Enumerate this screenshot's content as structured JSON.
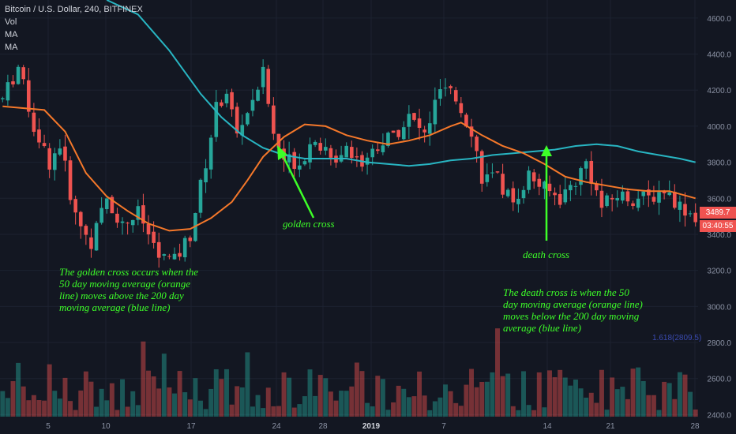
{
  "header": {
    "symbol": "Bitcoin / U.S. Dollar, 240, BITFINEX",
    "indicators": [
      "Vol",
      "MA",
      "MA"
    ]
  },
  "colors": {
    "background": "#131722",
    "up_candle": "#26a69a",
    "down_candle": "#ef5350",
    "ma50": "#f5782a",
    "ma200": "#28b5c2",
    "annotation": "#3dff28",
    "grid": "#1c2230",
    "axis_text": "#8c93a5",
    "price_tag_bg": "#2dbfae",
    "fib_text": "#3a4ab0"
  },
  "annotations": {
    "golden_label": "golden cross",
    "death_label": "death cross",
    "golden_note": [
      "The golden cross occurs when the",
      "50 day moving average (orange",
      "line) moves above the 200 day",
      "moving average (blue line)"
    ],
    "death_note": [
      "The death cross is when the 50",
      "day moving average (orange line)",
      "moves below the 200 day moving",
      "average (blue line)"
    ]
  },
  "price_tags": {
    "last_price": "3489.7",
    "countdown": "03:40:55",
    "fib_level": "1.618(2809.5)"
  },
  "chart_data": {
    "type": "candlestick",
    "title": "Bitcoin / U.S. Dollar, 240, BITFINEX",
    "y_axis": {
      "ticks": [
        2400,
        2600,
        2800,
        3000,
        3200,
        3400,
        3600,
        3800,
        4000,
        4200,
        4400,
        4600
      ],
      "tick_labels": [
        "2400.0",
        "2600.0",
        "2800.0",
        "3000.0",
        "3200.0",
        "3400.0",
        "3600.0",
        "3800.0",
        "4000.0",
        "4200.0",
        "4400.0",
        "4600.0"
      ],
      "range": [
        2380,
        4700
      ]
    },
    "x_axis": {
      "tick_labels": [
        "5",
        "10",
        "17",
        "24",
        "28",
        "2019",
        "7",
        "14",
        "21",
        "28"
      ],
      "bold_label": "2019"
    },
    "price_path": [
      [
        0,
        4150
      ],
      [
        3,
        4330
      ],
      [
        6,
        4000
      ],
      [
        9,
        3800
      ],
      [
        11,
        3900
      ],
      [
        14,
        3500
      ],
      [
        17,
        3350
      ],
      [
        20,
        3600
      ],
      [
        23,
        3450
      ],
      [
        26,
        3520
      ],
      [
        28,
        3400
      ],
      [
        30,
        3280
      ],
      [
        33,
        3250
      ],
      [
        36,
        3400
      ],
      [
        39,
        3800
      ],
      [
        41,
        4100
      ],
      [
        43,
        4200
      ],
      [
        45,
        3950
      ],
      [
        48,
        4150
      ],
      [
        50,
        4300
      ],
      [
        52,
        3950
      ],
      [
        54,
        3820
      ],
      [
        57,
        3800
      ],
      [
        60,
        3950
      ],
      [
        63,
        3800
      ],
      [
        66,
        3900
      ],
      [
        69,
        3800
      ],
      [
        72,
        3900
      ],
      [
        75,
        3950
      ],
      [
        78,
        4050
      ],
      [
        81,
        3950
      ],
      [
        84,
        4200
      ],
      [
        87,
        4150
      ],
      [
        90,
        3980
      ],
      [
        92,
        3720
      ],
      [
        95,
        3700
      ],
      [
        98,
        3580
      ],
      [
        101,
        3730
      ],
      [
        104,
        3650
      ],
      [
        107,
        3600
      ],
      [
        110,
        3700
      ],
      [
        112,
        3800
      ],
      [
        115,
        3550
      ],
      [
        118,
        3620
      ],
      [
        121,
        3600
      ],
      [
        124,
        3600
      ],
      [
        127,
        3650
      ],
      [
        130,
        3560
      ],
      [
        133,
        3500
      ]
    ],
    "ma50": [
      [
        0,
        4110
      ],
      [
        8,
        4090
      ],
      [
        12,
        3970
      ],
      [
        16,
        3740
      ],
      [
        20,
        3610
      ],
      [
        24,
        3530
      ],
      [
        28,
        3460
      ],
      [
        32,
        3420
      ],
      [
        36,
        3430
      ],
      [
        40,
        3490
      ],
      [
        44,
        3580
      ],
      [
        47,
        3700
      ],
      [
        50,
        3830
      ],
      [
        54,
        3940
      ],
      [
        58,
        4010
      ],
      [
        62,
        4000
      ],
      [
        66,
        3950
      ],
      [
        70,
        3920
      ],
      [
        74,
        3900
      ],
      [
        78,
        3920
      ],
      [
        82,
        3950
      ],
      [
        86,
        4000
      ],
      [
        88,
        4020
      ],
      [
        92,
        3950
      ],
      [
        96,
        3890
      ],
      [
        100,
        3850
      ],
      [
        104,
        3790
      ],
      [
        108,
        3720
      ],
      [
        112,
        3690
      ],
      [
        116,
        3670
      ],
      [
        120,
        3650
      ],
      [
        124,
        3640
      ],
      [
        128,
        3640
      ],
      [
        133,
        3600
      ]
    ],
    "ma200": [
      [
        20,
        4700
      ],
      [
        26,
        4620
      ],
      [
        32,
        4420
      ],
      [
        38,
        4180
      ],
      [
        42,
        4050
      ],
      [
        46,
        3950
      ],
      [
        50,
        3880
      ],
      [
        54,
        3840
      ],
      [
        58,
        3820
      ],
      [
        62,
        3820
      ],
      [
        66,
        3820
      ],
      [
        70,
        3800
      ],
      [
        74,
        3790
      ],
      [
        78,
        3780
      ],
      [
        82,
        3790
      ],
      [
        86,
        3810
      ],
      [
        90,
        3820
      ],
      [
        94,
        3840
      ],
      [
        98,
        3850
      ],
      [
        102,
        3860
      ],
      [
        106,
        3870
      ],
      [
        110,
        3890
      ],
      [
        114,
        3900
      ],
      [
        118,
        3890
      ],
      [
        122,
        3860
      ],
      [
        126,
        3840
      ],
      [
        130,
        3820
      ],
      [
        133,
        3800
      ]
    ]
  }
}
